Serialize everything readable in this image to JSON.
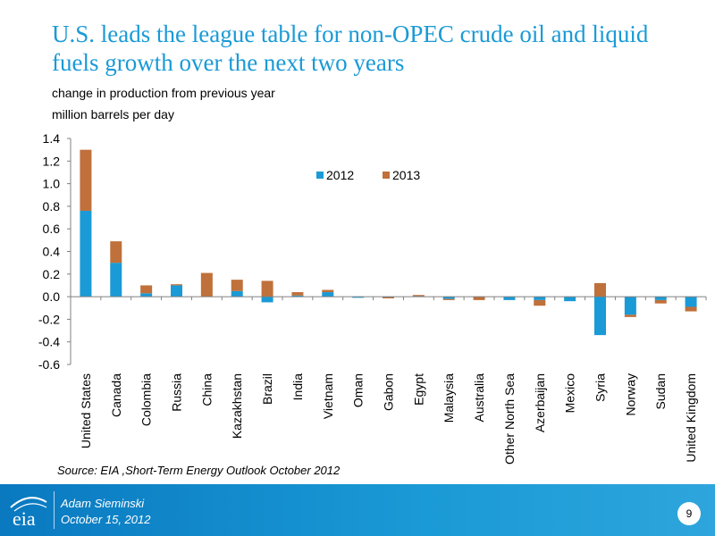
{
  "title": "U.S. leads the league table for non-OPEC crude oil and liquid fuels growth over the next two years",
  "axis_label_line1": "change in production from previous year",
  "axis_label_line2": "million barrels per day",
  "source": "Source: EIA ,Short-Term Energy Outlook October 2012",
  "footer": {
    "logo_text": "eia",
    "presenter": "Adam Sieminski",
    "date": "October 15, 2012",
    "page": "9"
  },
  "colors": {
    "series_2012": "#1a9ad6",
    "series_2013": "#c0703a",
    "title": "#1a9ad6"
  },
  "chart_data": {
    "type": "bar",
    "stacked": true,
    "title": "",
    "ylabel": "change in production from previous year million barrels per day",
    "ylim": [
      -0.6,
      1.4
    ],
    "yticks": [
      "1.4",
      "1.2",
      "1.0",
      "0.8",
      "0.6",
      "0.4",
      "0.2",
      "0.0",
      "-0.2",
      "-0.4",
      "-0.6"
    ],
    "legend_position": "top-right",
    "categories": [
      "United States",
      "Canada",
      "Colombia",
      "Russia",
      "China",
      "Kazakhstan",
      "Brazil",
      "India",
      "Vietnam",
      "Oman",
      "Gabon",
      "Egypt",
      "Malaysia",
      "Australia",
      "Other North Sea",
      "Azerbaijan",
      "Mexico",
      "Syria",
      "Norway",
      "Sudan",
      "United Kingdom"
    ],
    "series": [
      {
        "name": "2012",
        "values": [
          0.76,
          0.3,
          0.03,
          0.1,
          0.0,
          0.05,
          -0.05,
          0.01,
          0.04,
          -0.01,
          -0.005,
          0.005,
          -0.02,
          0.0,
          -0.03,
          -0.03,
          -0.04,
          -0.34,
          -0.16,
          -0.03,
          -0.09
        ]
      },
      {
        "name": "2013",
        "values": [
          0.54,
          0.19,
          0.07,
          0.01,
          0.21,
          0.1,
          0.14,
          0.03,
          0.02,
          0.0,
          -0.01,
          0.01,
          -0.01,
          -0.03,
          0.0,
          -0.05,
          0.0,
          0.12,
          -0.02,
          -0.03,
          -0.04
        ]
      }
    ]
  }
}
